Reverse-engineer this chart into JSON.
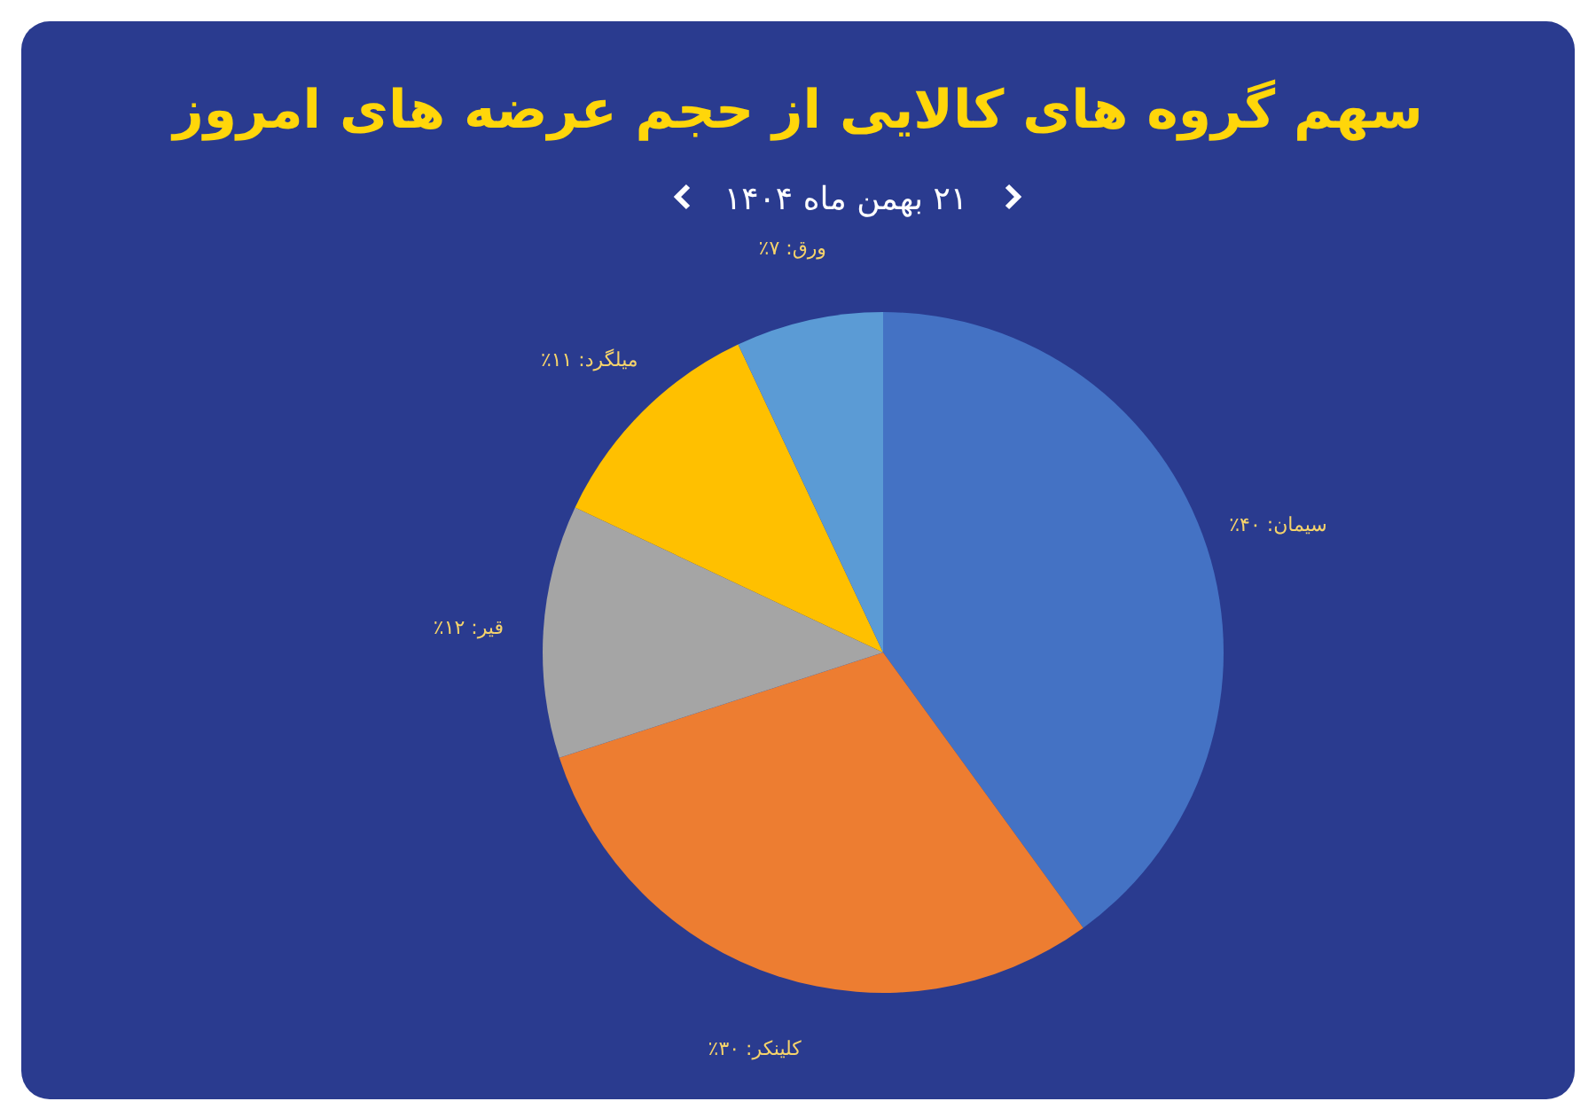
{
  "chart_data": {
    "type": "pie",
    "title": "سهم گروه های کالایی از حجم عرضه های امروز",
    "subtitle": "۲۱ بهمن ماه ۱۴۰۴",
    "categories": [
      "سیمان",
      "کلینکر",
      "قیر",
      "میلگرد",
      "ورق"
    ],
    "values": [
      40,
      30,
      12,
      11,
      7
    ],
    "value_labels": [
      "۴۰٪",
      "۳۰٪",
      "۱۲٪",
      "۱۱٪",
      "۷٪"
    ],
    "colors": [
      "#4472c4",
      "#ed7d31",
      "#a5a5a5",
      "#ffc000",
      "#5b9bd5"
    ]
  }
}
